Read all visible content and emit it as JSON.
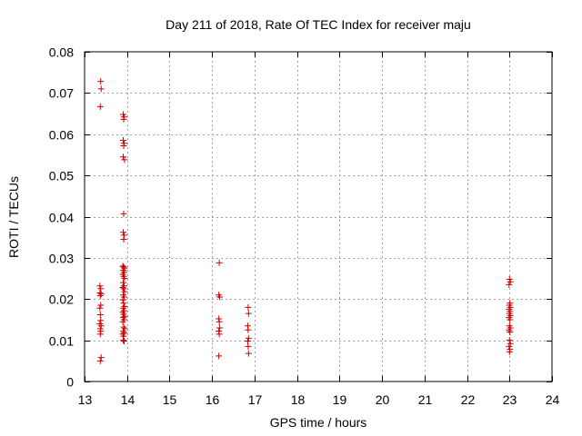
{
  "chart_data": {
    "type": "scatter",
    "title": "Day 211 of 2018, Rate Of TEC Index for receiver maju",
    "xlabel": "GPS time / hours",
    "ylabel": "ROTI / TECUs",
    "xlim": [
      13,
      24
    ],
    "ylim": [
      0,
      0.08
    ],
    "xticks": [
      13,
      14,
      15,
      16,
      17,
      18,
      19,
      20,
      21,
      22,
      23,
      24
    ],
    "yticks": [
      0,
      0.01,
      0.02,
      0.03,
      0.04,
      0.05,
      0.06,
      0.07,
      0.08
    ],
    "xtick_labels": [
      "13",
      "14",
      "15",
      "16",
      "17",
      "18",
      "19",
      "20",
      "21",
      "22",
      "23",
      "24"
    ],
    "ytick_labels": [
      "0",
      "0.01",
      "0.02",
      "0.03",
      "0.04",
      "0.05",
      "0.06",
      "0.07",
      "0.08"
    ],
    "grid": true,
    "marker": "plus",
    "color": "#cc0000",
    "series": [
      {
        "name": "ROTI",
        "points": [
          [
            13.38,
            0.0728
          ],
          [
            13.39,
            0.071
          ],
          [
            13.37,
            0.0667
          ],
          [
            13.36,
            0.0232
          ],
          [
            13.38,
            0.0225
          ],
          [
            13.36,
            0.0215
          ],
          [
            13.39,
            0.0212
          ],
          [
            13.37,
            0.0208
          ],
          [
            13.38,
            0.0185
          ],
          [
            13.36,
            0.0178
          ],
          [
            13.37,
            0.0162
          ],
          [
            13.38,
            0.0148
          ],
          [
            13.36,
            0.014
          ],
          [
            13.39,
            0.0135
          ],
          [
            13.37,
            0.0128
          ],
          [
            13.38,
            0.0122
          ],
          [
            13.37,
            0.0115
          ],
          [
            13.39,
            0.0058
          ],
          [
            13.37,
            0.005
          ],
          [
            13.91,
            0.0648
          ],
          [
            13.93,
            0.0642
          ],
          [
            13.92,
            0.0636
          ],
          [
            13.91,
            0.0585
          ],
          [
            13.93,
            0.0578
          ],
          [
            13.92,
            0.0572
          ],
          [
            13.91,
            0.0545
          ],
          [
            13.94,
            0.0538
          ],
          [
            13.92,
            0.0407
          ],
          [
            13.91,
            0.0362
          ],
          [
            13.93,
            0.0355
          ],
          [
            13.92,
            0.0345
          ],
          [
            13.9,
            0.028
          ],
          [
            13.92,
            0.0278
          ],
          [
            13.94,
            0.0275
          ],
          [
            13.91,
            0.027
          ],
          [
            13.93,
            0.0265
          ],
          [
            13.9,
            0.026
          ],
          [
            13.92,
            0.0255
          ],
          [
            13.94,
            0.025
          ],
          [
            13.91,
            0.024
          ],
          [
            13.93,
            0.0232
          ],
          [
            13.9,
            0.0228
          ],
          [
            13.92,
            0.0225
          ],
          [
            13.94,
            0.0218
          ],
          [
            13.91,
            0.021
          ],
          [
            13.93,
            0.0205
          ],
          [
            13.9,
            0.0198
          ],
          [
            13.92,
            0.019
          ],
          [
            13.94,
            0.0182
          ],
          [
            13.91,
            0.0178
          ],
          [
            13.93,
            0.0172
          ],
          [
            13.9,
            0.0168
          ],
          [
            13.92,
            0.0163
          ],
          [
            13.94,
            0.0158
          ],
          [
            13.91,
            0.0155
          ],
          [
            13.93,
            0.015
          ],
          [
            13.9,
            0.0145
          ],
          [
            13.92,
            0.0132
          ],
          [
            13.94,
            0.0128
          ],
          [
            13.91,
            0.0122
          ],
          [
            13.93,
            0.0118
          ],
          [
            13.9,
            0.0115
          ],
          [
            13.92,
            0.011
          ],
          [
            13.91,
            0.01
          ],
          [
            13.93,
            0.0098
          ],
          [
            16.17,
            0.0288
          ],
          [
            16.16,
            0.021
          ],
          [
            16.18,
            0.0205
          ],
          [
            16.16,
            0.0152
          ],
          [
            16.17,
            0.0145
          ],
          [
            16.18,
            0.013
          ],
          [
            16.16,
            0.0122
          ],
          [
            16.17,
            0.0115
          ],
          [
            16.16,
            0.0062
          ],
          [
            16.85,
            0.018
          ],
          [
            16.86,
            0.0165
          ],
          [
            16.84,
            0.0135
          ],
          [
            16.85,
            0.0125
          ],
          [
            16.86,
            0.0105
          ],
          [
            16.84,
            0.0098
          ],
          [
            16.85,
            0.0085
          ],
          [
            16.86,
            0.0068
          ],
          [
            23.0,
            0.0248
          ],
          [
            23.02,
            0.0242
          ],
          [
            22.99,
            0.0235
          ],
          [
            23.01,
            0.019
          ],
          [
            23.0,
            0.0185
          ],
          [
            23.02,
            0.018
          ],
          [
            22.99,
            0.0175
          ],
          [
            23.01,
            0.017
          ],
          [
            23.0,
            0.0165
          ],
          [
            23.02,
            0.016
          ],
          [
            22.99,
            0.0155
          ],
          [
            23.01,
            0.015
          ],
          [
            23.0,
            0.0135
          ],
          [
            23.02,
            0.013
          ],
          [
            22.99,
            0.0125
          ],
          [
            23.01,
            0.012
          ],
          [
            23.0,
            0.01
          ],
          [
            23.02,
            0.0092
          ],
          [
            22.99,
            0.0085
          ],
          [
            23.01,
            0.0078
          ],
          [
            23.0,
            0.0072
          ]
        ]
      }
    ]
  }
}
